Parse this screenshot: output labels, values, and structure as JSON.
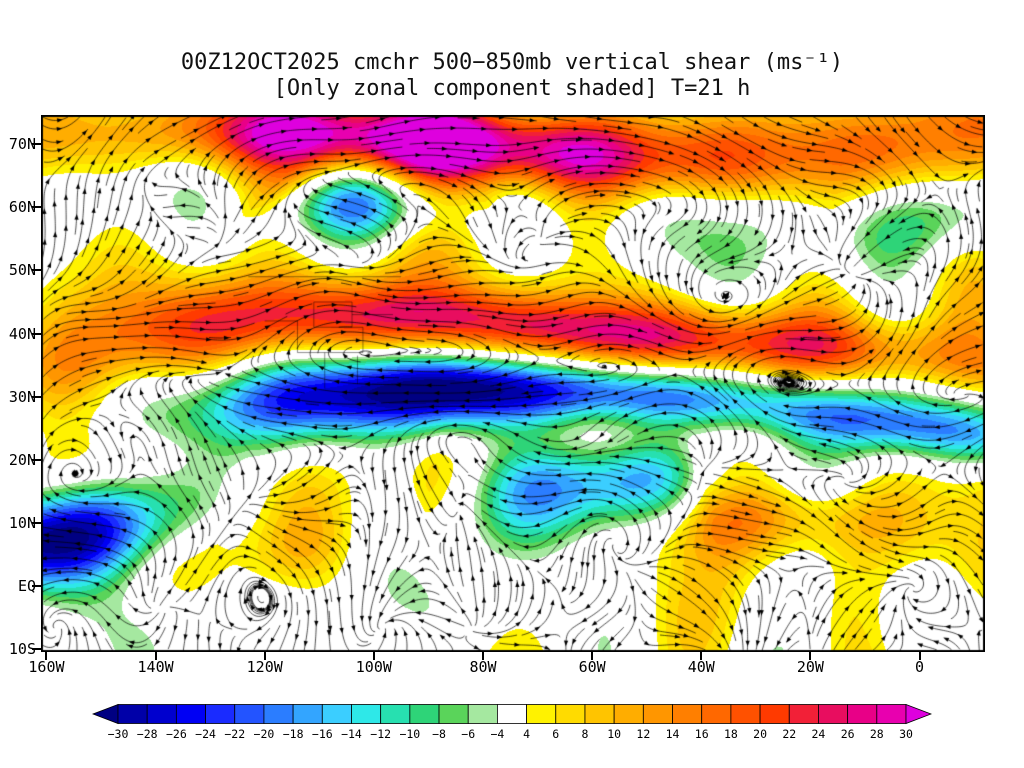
{
  "page": {
    "background": "#FFFFFF"
  },
  "chart_data": {
    "type": "heatmap",
    "title": "00Z12OCT2025 cmchr 500−850mb vertical shear (ms⁻¹)",
    "subtitle": "[Only zonal component shaded] T=21 h",
    "legend_position": "bottom",
    "grid": false,
    "x_axis": {
      "ticks": [
        "160W",
        "140W",
        "120W",
        "100W",
        "80W",
        "60W",
        "40W",
        "20W",
        "0"
      ],
      "values": [
        -160,
        -140,
        -120,
        -100,
        -80,
        -60,
        -40,
        -20,
        0
      ],
      "range": [
        -161,
        12
      ]
    },
    "y_axis": {
      "ticks": [
        "70N",
        "60N",
        "50N",
        "40N",
        "30N",
        "20N",
        "10N",
        "EQ",
        "10S"
      ],
      "values": [
        70,
        60,
        50,
        40,
        30,
        20,
        10,
        0,
        -10
      ],
      "range": [
        74.6,
        -10.4
      ]
    },
    "colorbar": {
      "units": "ms⁻¹",
      "labels": [
        "−30",
        "−28",
        "−26",
        "−24",
        "−22",
        "−20",
        "−18",
        "−16",
        "−14",
        "−12",
        "−10",
        "−8",
        "−6",
        "−4",
        "4",
        "6",
        "8",
        "10",
        "12",
        "14",
        "16",
        "18",
        "20",
        "22",
        "24",
        "26",
        "28",
        "30"
      ],
      "boundaries": [
        -30,
        -28,
        -26,
        -24,
        -22,
        -20,
        -18,
        -16,
        -14,
        -12,
        -10,
        -8,
        -6,
        -4,
        4,
        6,
        8,
        10,
        12,
        14,
        16,
        18,
        20,
        22,
        24,
        26,
        28,
        30
      ],
      "colors": [
        "#000082",
        "#0000A8",
        "#0000CE",
        "#0000F4",
        "#1A2BFF",
        "#2354FF",
        "#2B7DFF",
        "#33A5FF",
        "#3BCEFF",
        "#2EE8E8",
        "#27E0B0",
        "#2ED478",
        "#5AD45A",
        "#A5E8A0",
        "#FFFFFF",
        "#FFF200",
        "#FFDB00",
        "#FFC400",
        "#FFAD00",
        "#FF9600",
        "#FF7F00",
        "#FF6800",
        "#FF5100",
        "#FF3A00",
        "#F22037",
        "#E80D5F",
        "#E80087",
        "#E800AF",
        "#DE00DE"
      ],
      "white_range": [
        -4,
        4
      ]
    }
  }
}
